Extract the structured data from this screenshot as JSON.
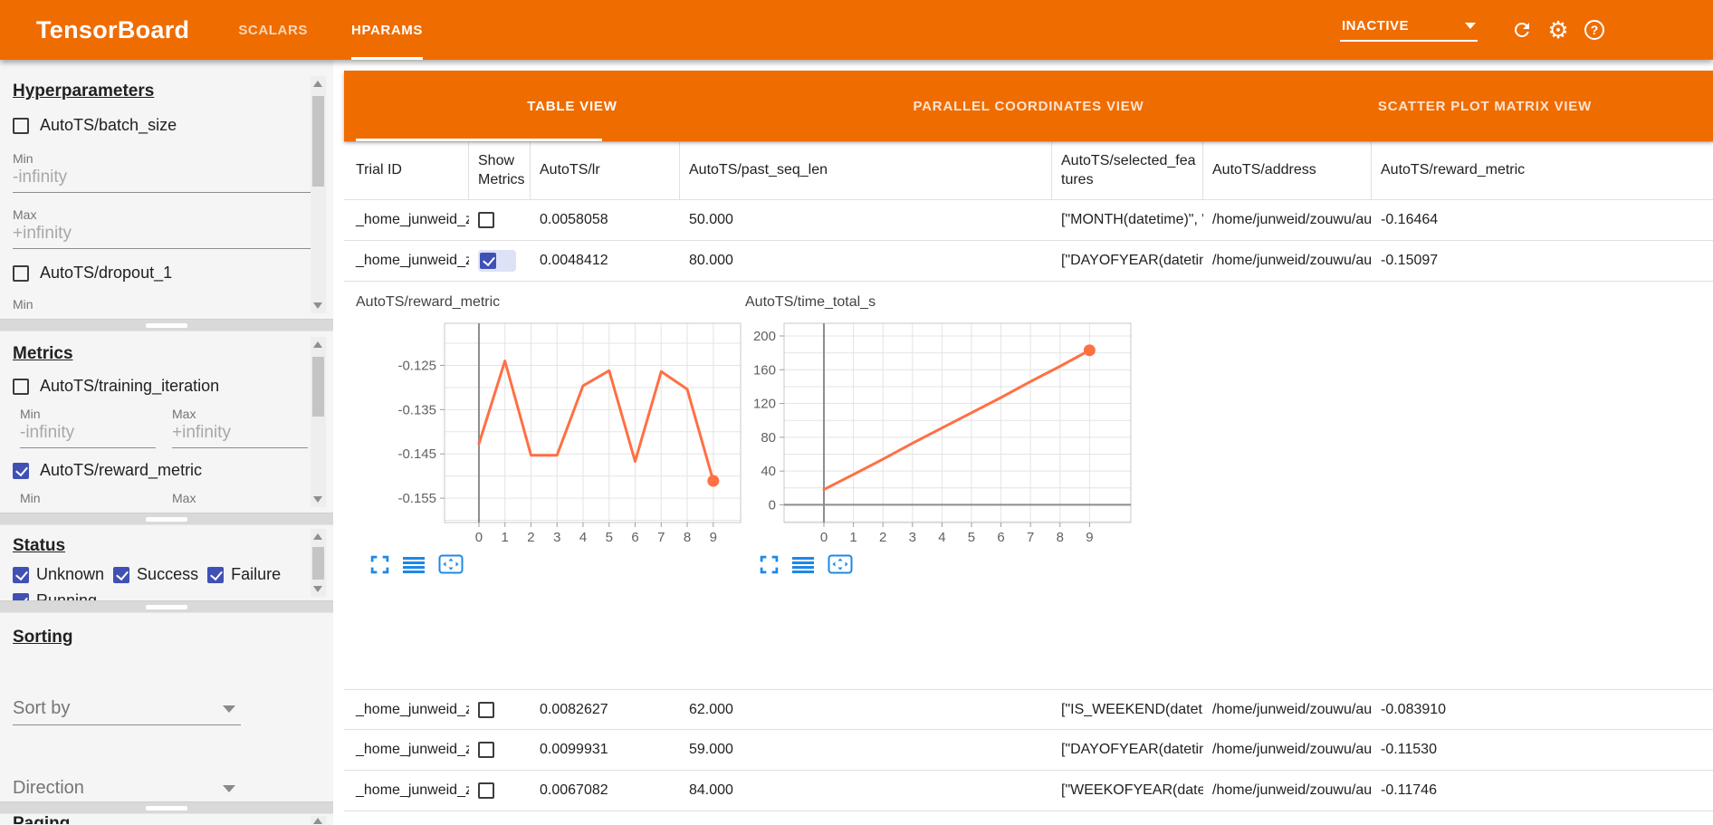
{
  "colors": {
    "accent_orange": "#ef6c00",
    "checkbox_blue": "#3f51b5",
    "chart_line": "#ff7043",
    "chart_tool_blue": "#1e88e5"
  },
  "header": {
    "title": "TensorBoard",
    "nav_tabs": [
      {
        "label": "SCALARS",
        "active": false
      },
      {
        "label": "HPARAMS",
        "active": true
      }
    ],
    "runs_selector": "INACTIVE"
  },
  "sidebar": {
    "hyperparameters": {
      "heading": "Hyperparameters",
      "batch_size": {
        "label": "AutoTS/batch_size",
        "checked": false,
        "min_label": "Min",
        "min": "-infinity",
        "max_label": "Max",
        "max": "+infinity"
      },
      "dropout": {
        "label": "AutoTS/dropout_1",
        "checked": false,
        "min_label": "Min"
      }
    },
    "metrics": {
      "heading": "Metrics",
      "training_iteration": {
        "label": "AutoTS/training_iteration",
        "checked": false,
        "min_label": "Min",
        "min": "-infinity",
        "max_label": "Max",
        "max": "+infinity"
      },
      "reward_metric": {
        "label": "AutoTS/reward_metric",
        "checked": true,
        "min_label": "Min",
        "max_label": "Max"
      }
    },
    "status": {
      "heading": "Status",
      "options": [
        {
          "label": "Unknown",
          "checked": true
        },
        {
          "label": "Success",
          "checked": true
        },
        {
          "label": "Failure",
          "checked": true
        },
        {
          "label": "Running",
          "checked": true
        }
      ]
    },
    "sorting": {
      "heading": "Sorting",
      "sort_by": "Sort by",
      "direction": "Direction"
    },
    "paging": {
      "heading": "Paging"
    }
  },
  "main": {
    "view_tabs": [
      {
        "label": "TABLE VIEW",
        "active": true
      },
      {
        "label": "PARALLEL COORDINATES VIEW",
        "active": false
      },
      {
        "label": "SCATTER PLOT MATRIX VIEW",
        "active": false
      }
    ],
    "table": {
      "columns": [
        "Trial ID",
        "Show Metrics",
        "AutoTS/lr",
        "AutoTS/past_seq_len",
        "AutoTS/selected_features",
        "AutoTS/address",
        "AutoTS/reward_metric"
      ],
      "rows": [
        {
          "trial_id": "_home_junweid_z…",
          "checked": false,
          "lr": "0.0058058",
          "past_seq_len": "50.000",
          "selected_features": "[\"MONTH(datetime)\", \"I…",
          "address": "/home/junweid/zouwu/aut…",
          "reward_metric": "-0.16464"
        },
        {
          "trial_id": "_home_junweid_z…",
          "checked": true,
          "lr": "0.0048412",
          "past_seq_len": "80.000",
          "selected_features": "[\"DAYOFYEAR(datetime…",
          "address": "/home/junweid/zouwu/aut…",
          "reward_metric": "-0.15097"
        },
        {
          "trial_id": "_home_junweid_z…",
          "checked": false,
          "lr": "0.0082627",
          "past_seq_len": "62.000",
          "selected_features": "[\"IS_WEEKEND(datetim…",
          "address": "/home/junweid/zouwu/aut…",
          "reward_metric": "-0.083910"
        },
        {
          "trial_id": "_home_junweid_z…",
          "checked": false,
          "lr": "0.0099931",
          "past_seq_len": "59.000",
          "selected_features": "[\"DAYOFYEAR(datetime…",
          "address": "/home/junweid/zouwu/aut…",
          "reward_metric": "-0.11530"
        },
        {
          "trial_id": "_home_junweid_z…",
          "checked": false,
          "lr": "0.0067082",
          "past_seq_len": "84.000",
          "selected_features": "[\"WEEKOFYEAR(dateti…",
          "address": "/home/junweid/zouwu/aut…",
          "reward_metric": "-0.11746"
        }
      ]
    }
  },
  "chart_data": [
    {
      "type": "line",
      "title": "AutoTS/reward_metric",
      "x": [
        0,
        1,
        2,
        3,
        4,
        5,
        6,
        7,
        8,
        9
      ],
      "values": [
        -0.1427,
        -0.124,
        -0.1453,
        -0.1453,
        -0.1296,
        -0.1262,
        -0.1467,
        -0.1264,
        -0.1304,
        -0.1511
      ],
      "xlim": [
        -1.32,
        10.05
      ],
      "ylim": [
        -0.1605,
        -0.1155
      ],
      "yticks": [
        -0.125,
        -0.135,
        -0.145,
        -0.155
      ],
      "ytick_labels": [
        "-0.125",
        "-0.135",
        "-0.145",
        "-0.155"
      ],
      "xtick_labels": [
        "0",
        "1",
        "2",
        "3",
        "4",
        "5",
        "6",
        "7",
        "8",
        "9"
      ],
      "ygrid_step": 0.005,
      "grid": true,
      "line_color": "#ff7043",
      "end_marker": true
    },
    {
      "type": "line",
      "title": "AutoTS/time_total_s",
      "x": [
        0,
        1,
        2,
        3,
        4,
        5,
        6,
        7,
        8,
        9
      ],
      "values": [
        18,
        36,
        54,
        73,
        91,
        109,
        127,
        146,
        164,
        183
      ],
      "xlim": [
        -1.35,
        10.4
      ],
      "ylim": [
        -21,
        215
      ],
      "yticks": [
        0,
        40,
        80,
        120,
        160,
        200
      ],
      "ytick_labels": [
        "0",
        "40",
        "80",
        "120",
        "160",
        "200"
      ],
      "xtick_labels": [
        "0",
        "1",
        "2",
        "3",
        "4",
        "5",
        "6",
        "7",
        "8",
        "9"
      ],
      "ygrid_step": 20,
      "grid": true,
      "line_color": "#ff7043",
      "end_marker": true
    }
  ]
}
